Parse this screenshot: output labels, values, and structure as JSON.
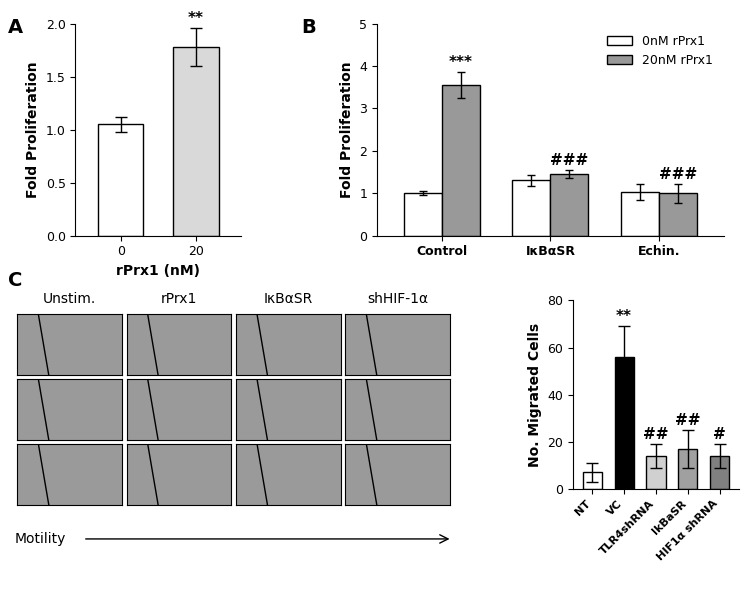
{
  "chart_data": [
    {
      "type": "bar",
      "panel": "A",
      "categories": [
        "0",
        "20"
      ],
      "values": [
        1.05,
        1.78
      ],
      "errors": [
        0.07,
        0.18
      ],
      "colors": [
        "#ffffff",
        "#d9d9d9"
      ],
      "annotations": [
        null,
        "**"
      ],
      "x_label": "rPrx1 (nM)",
      "y_label": "Fold Proliferation",
      "ylim": [
        0.0,
        2.0
      ],
      "yticks": [
        0.0,
        0.5,
        1.0,
        1.5,
        2.0
      ]
    },
    {
      "type": "grouped_bar",
      "panel": "B",
      "categories": [
        "Control",
        "IκBαSR",
        "Echin."
      ],
      "series": [
        {
          "name": "0nM rPrx1",
          "color": "#ffffff",
          "values": [
            1.0,
            1.3,
            1.03
          ],
          "errors": [
            0.05,
            0.13,
            0.18
          ],
          "annotations": [
            null,
            null,
            null
          ]
        },
        {
          "name": "20nM rPrx1",
          "color": "#999999",
          "values": [
            3.55,
            1.45,
            1.0
          ],
          "errors": [
            0.3,
            0.1,
            0.22
          ],
          "annotations": [
            "***",
            "###",
            "###"
          ]
        }
      ],
      "y_label": "Fold Proliferation",
      "legend": "upper right",
      "ylim": [
        0,
        5
      ],
      "yticks": [
        0,
        1,
        2,
        3,
        4,
        5
      ]
    },
    {
      "type": "bar",
      "panel": "C",
      "categories": [
        "NT",
        "VC",
        "TLR4shRNA",
        "IkBaSR",
        "HIF1α shRNA"
      ],
      "values": [
        7,
        56,
        14,
        17,
        14
      ],
      "errors": [
        4,
        13,
        5,
        8,
        5
      ],
      "colors": [
        "#ffffff",
        "#000000",
        "#d0d0d0",
        "#a0a0a0",
        "#808080"
      ],
      "annotations": [
        null,
        "**",
        "##",
        "##",
        "#"
      ],
      "y_label": "No. Migrated Cells",
      "ylim": [
        0,
        80
      ],
      "yticks": [
        0,
        20,
        40,
        60,
        80
      ]
    }
  ],
  "micrographs": {
    "columns": [
      "Unstim.",
      "rPrx1",
      "IκBαSR",
      "shHIF-1α"
    ],
    "rows": 3,
    "arrow_label": "Motility"
  }
}
